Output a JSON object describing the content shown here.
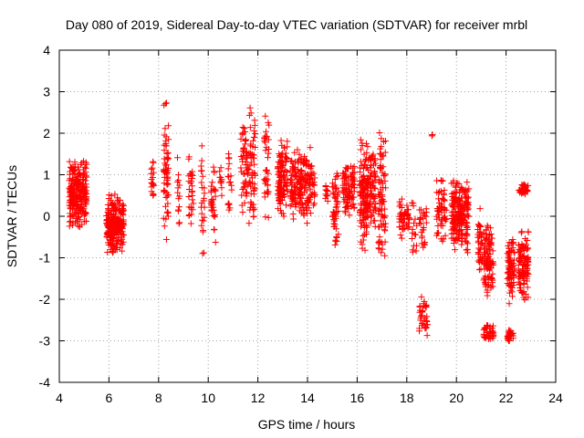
{
  "chart_data": {
    "type": "scatter",
    "title": "Day 080 of 2019, Sidereal Day-to-day VTEC variation (SDTVAR) for receiver mrbl",
    "xlabel": "GPS time / hours",
    "ylabel": "SDTVAR / TECUs",
    "xlim": [
      4,
      24
    ],
    "ylim": [
      -4,
      4
    ],
    "xticks": [
      "4",
      "6",
      "8",
      "10",
      "12",
      "14",
      "16",
      "18",
      "20",
      "22",
      "24"
    ],
    "yticks": [
      "-4",
      "-3",
      "-2",
      "-1",
      "0",
      "1",
      "2",
      "3",
      "4"
    ],
    "grid": true,
    "marker": "+",
    "series_color": "#ff0000",
    "clusters": [
      {
        "x": [
          4.4,
          5.1
        ],
        "y": [
          -0.35,
          1.4
        ],
        "n": 260
      },
      {
        "x": [
          5.9,
          6.6
        ],
        "y": [
          -0.95,
          0.55
        ],
        "n": 260
      },
      {
        "x": [
          7.7,
          7.8
        ],
        "y": [
          0.4,
          1.4
        ],
        "n": 18
      },
      {
        "x": [
          8.2,
          8.4
        ],
        "y": [
          -0.6,
          3.1
        ],
        "n": 60
      },
      {
        "x": [
          8.75,
          8.85
        ],
        "y": [
          -0.5,
          1.85
        ],
        "n": 14
      },
      {
        "x": [
          9.2,
          9.4
        ],
        "y": [
          -0.5,
          1.7
        ],
        "n": 30
      },
      {
        "x": [
          9.7,
          9.85
        ],
        "y": [
          -1.0,
          1.9
        ],
        "n": 24
      },
      {
        "x": [
          10.1,
          10.3
        ],
        "y": [
          -0.9,
          1.6
        ],
        "n": 30
      },
      {
        "x": [
          10.45,
          10.55
        ],
        "y": [
          0.4,
          1.3
        ],
        "n": 10
      },
      {
        "x": [
          10.8,
          10.95
        ],
        "y": [
          0.0,
          1.7
        ],
        "n": 18
      },
      {
        "x": [
          11.3,
          11.9
        ],
        "y": [
          -0.2,
          2.7
        ],
        "n": 110
      },
      {
        "x": [
          12.25,
          12.45
        ],
        "y": [
          -0.6,
          2.7
        ],
        "n": 36
      },
      {
        "x": [
          12.8,
          13.2
        ],
        "y": [
          -0.1,
          2.0
        ],
        "n": 110
      },
      {
        "x": [
          13.3,
          14.3
        ],
        "y": [
          -0.2,
          1.7
        ],
        "n": 200
      },
      {
        "x": [
          14.7,
          14.85
        ],
        "y": [
          0.2,
          0.9
        ],
        "n": 12
      },
      {
        "x": [
          15.0,
          15.25
        ],
        "y": [
          -1.05,
          1.2
        ],
        "n": 50
      },
      {
        "x": [
          15.4,
          15.9
        ],
        "y": [
          0.0,
          1.3
        ],
        "n": 90
      },
      {
        "x": [
          16.1,
          16.4
        ],
        "y": [
          -1.1,
          2.0
        ],
        "n": 110
      },
      {
        "x": [
          16.4,
          16.75
        ],
        "y": [
          -0.3,
          1.7
        ],
        "n": 90
      },
      {
        "x": [
          16.85,
          17.15
        ],
        "y": [
          -1.35,
          2.25
        ],
        "n": 80
      },
      {
        "x": [
          17.7,
          18.1
        ],
        "y": [
          -0.6,
          0.5
        ],
        "n": 50
      },
      {
        "x": [
          18.2,
          18.4
        ],
        "y": [
          -1.15,
          0.5
        ],
        "n": 16
      },
      {
        "x": [
          18.5,
          18.85
        ],
        "y": [
          -3.0,
          -1.9
        ],
        "n": 40
      },
      {
        "x": [
          18.5,
          18.8
        ],
        "y": [
          -1.0,
          0.5
        ],
        "n": 26
      },
      {
        "x": [
          18.95,
          19.05
        ],
        "y": [
          1.9,
          2.0
        ],
        "n": 3
      },
      {
        "x": [
          19.2,
          19.6
        ],
        "y": [
          -0.7,
          1.0
        ],
        "n": 60
      },
      {
        "x": [
          19.8,
          20.5
        ],
        "y": [
          -1.0,
          1.0
        ],
        "n": 200
      },
      {
        "x": [
          20.85,
          21.05
        ],
        "y": [
          -1.5,
          0.4
        ],
        "n": 40
      },
      {
        "x": [
          21.1,
          21.5
        ],
        "y": [
          -2.05,
          0.0
        ],
        "n": 100
      },
      {
        "x": [
          21.1,
          21.5
        ],
        "y": [
          -3.05,
          -2.6
        ],
        "n": 40
      },
      {
        "x": [
          22.05,
          22.35
        ],
        "y": [
          -2.2,
          -0.3
        ],
        "n": 80
      },
      {
        "x": [
          22.05,
          22.3
        ],
        "y": [
          -3.05,
          -2.7
        ],
        "n": 30
      },
      {
        "x": [
          22.5,
          22.9
        ],
        "y": [
          -2.2,
          -0.2
        ],
        "n": 110
      },
      {
        "x": [
          22.5,
          22.9
        ],
        "y": [
          0.5,
          0.8
        ],
        "n": 40
      }
    ]
  }
}
